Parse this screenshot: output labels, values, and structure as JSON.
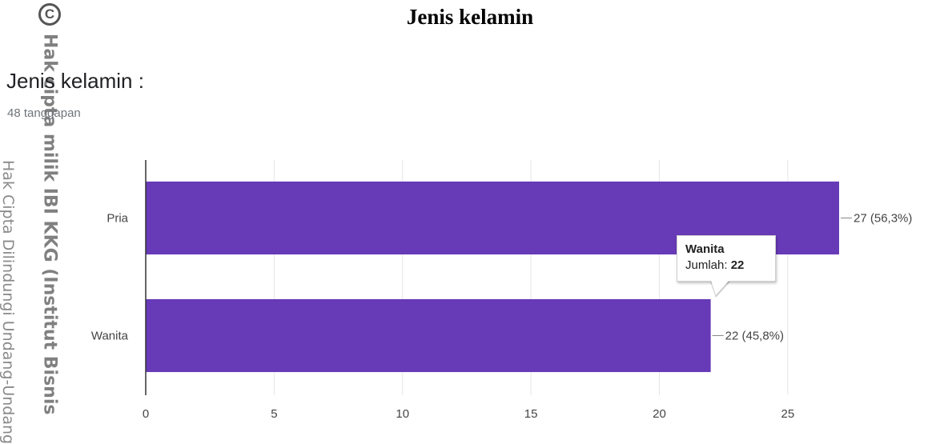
{
  "document_title": "Jenis kelamin",
  "question": {
    "title": "Jenis kelamin :",
    "response_count": "48 tanggapan"
  },
  "watermark": {
    "copyright_symbol": "C",
    "line1": "Hak cipta milik IBI KKG (Institut Bisnis",
    "line2": "Hak Cipta Dilindungi Undang-Undang"
  },
  "chart_data": {
    "type": "bar",
    "orientation": "horizontal",
    "categories": [
      "Pria",
      "Wanita"
    ],
    "values": [
      27,
      22
    ],
    "data_labels": [
      "27 (56,3%)",
      "22 (45,8%)"
    ],
    "xlim": [
      0,
      27
    ],
    "xticks": [
      0,
      5,
      10,
      15,
      20,
      25
    ],
    "grid": true,
    "bar_color": "#673ab7",
    "title": "",
    "xlabel": "",
    "ylabel": ""
  },
  "tooltip": {
    "category": "Wanita",
    "label": "Jumlah:",
    "value": "22"
  }
}
